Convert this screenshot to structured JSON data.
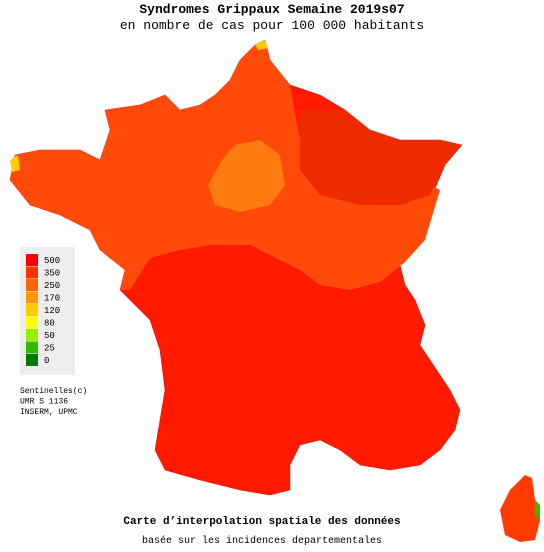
{
  "header": {
    "title": "Syndromes Grippaux Semaine 2019s07",
    "subtitle": "en nombre de cas pour 100 000 habitants"
  },
  "legend": [
    {
      "label": "500",
      "color": "#ff0000"
    },
    {
      "label": "350",
      "color": "#ff3300"
    },
    {
      "label": "250",
      "color": "#ff6600"
    },
    {
      "label": "170",
      "color": "#ff9900"
    },
    {
      "label": "120",
      "color": "#ffcc00"
    },
    {
      "label": "80",
      "color": "#ffff00"
    },
    {
      "label": "50",
      "color": "#99ee00"
    },
    {
      "label": "25",
      "color": "#33bb00"
    },
    {
      "label": "0",
      "color": "#007a00"
    }
  ],
  "credits": [
    "Sentinelles(c)",
    "UMR S 1136",
    "INSERM, UPMC"
  ],
  "footer": {
    "title": "Carte d’interpolation spatiale des données",
    "subtitle": "basée sur les incidences departementales"
  }
}
